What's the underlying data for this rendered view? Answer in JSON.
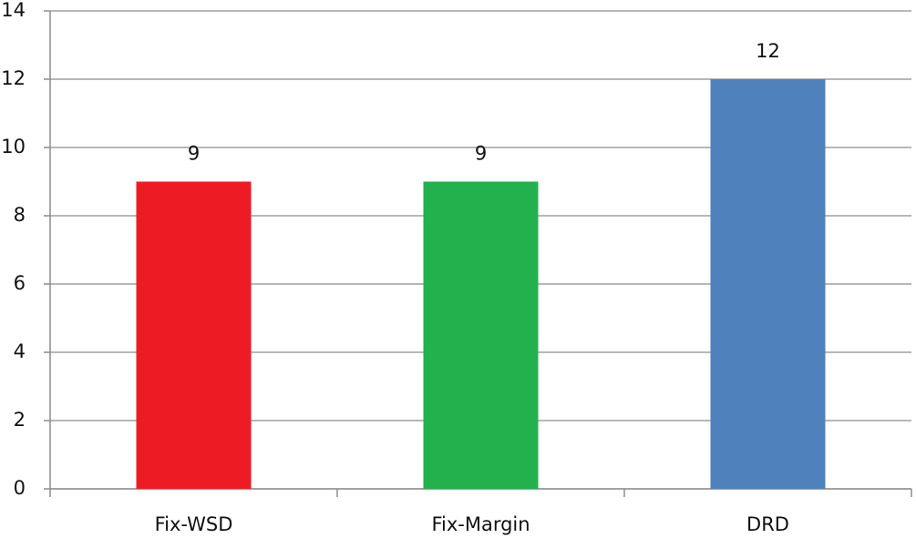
{
  "chart_data": {
    "type": "bar",
    "categories": [
      "Fix-WSD",
      "Fix-Margin",
      "DRD"
    ],
    "values": [
      9,
      9,
      12
    ],
    "colors": [
      "#ed1c24",
      "#22b14c",
      "#4f81bd"
    ],
    "ylim": [
      0,
      14
    ],
    "yticks": [
      0,
      2,
      4,
      6,
      8,
      10,
      12,
      14
    ],
    "grid": true
  }
}
